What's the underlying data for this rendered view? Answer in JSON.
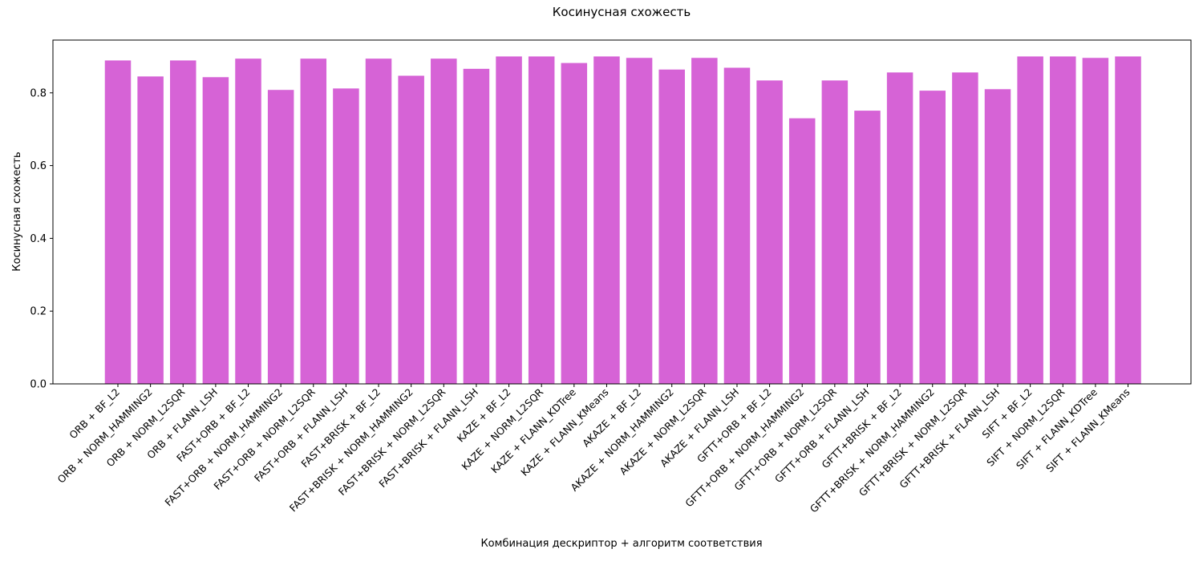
{
  "chart_data": {
    "type": "bar",
    "title": "Косинусная схожесть",
    "xlabel": "Комбинация дескриптор + алгоритм соответствия",
    "ylabel": "Косинусная схожесть",
    "ylim": [
      0,
      0.945
    ],
    "yticks": [
      0.0,
      0.2,
      0.4,
      0.6,
      0.8
    ],
    "ytick_labels": [
      "0.0",
      "0.2",
      "0.4",
      "0.6",
      "0.8"
    ],
    "grid": false,
    "bar_color": "#d663d6",
    "categories": [
      "ORB + BF_L2",
      "ORB + NORM_HAMMING2",
      "ORB + NORM_L2SQR",
      "ORB + FLANN_LSH",
      "FAST+ORB + BF_L2",
      "FAST+ORB + NORM_HAMMING2",
      "FAST+ORB + NORM_L2SQR",
      "FAST+ORB + FLANN_LSH",
      "FAST+BRISK + BF_L2",
      "FAST+BRISK + NORM_HAMMING2",
      "FAST+BRISK + NORM_L2SQR",
      "FAST+BRISK + FLANN_LSH",
      "KAZE + BF_L2",
      "KAZE + NORM_L2SQR",
      "KAZE + FLANN_KDTree",
      "KAZE + FLANN_KMeans",
      "AKAZE + BF_L2",
      "AKAZE + NORM_HAMMING2",
      "AKAZE + NORM_L2SQR",
      "AKAZE + FLANN_LSH",
      "GFTT+ORB + BF_L2",
      "GFTT+ORB + NORM_HAMMING2",
      "GFTT+ORB + NORM_L2SQR",
      "GFTT+ORB + FLANN_LSH",
      "GFTT+BRISK + BF_L2",
      "GFTT+BRISK + NORM_HAMMING2",
      "GFTT+BRISK + NORM_L2SQR",
      "GFTT+BRISK + FLANN_LSH",
      "SIFT + BF_L2",
      "SIFT + NORM_L2SQR",
      "SIFT + FLANN_KDTree",
      "SIFT + FLANN_KMeans"
    ],
    "values": [
      0.889,
      0.845,
      0.889,
      0.843,
      0.894,
      0.808,
      0.894,
      0.812,
      0.894,
      0.847,
      0.894,
      0.866,
      0.9,
      0.9,
      0.882,
      0.9,
      0.896,
      0.864,
      0.896,
      0.869,
      0.834,
      0.73,
      0.834,
      0.751,
      0.856,
      0.806,
      0.856,
      0.81,
      0.9,
      0.9,
      0.896,
      0.9
    ]
  }
}
